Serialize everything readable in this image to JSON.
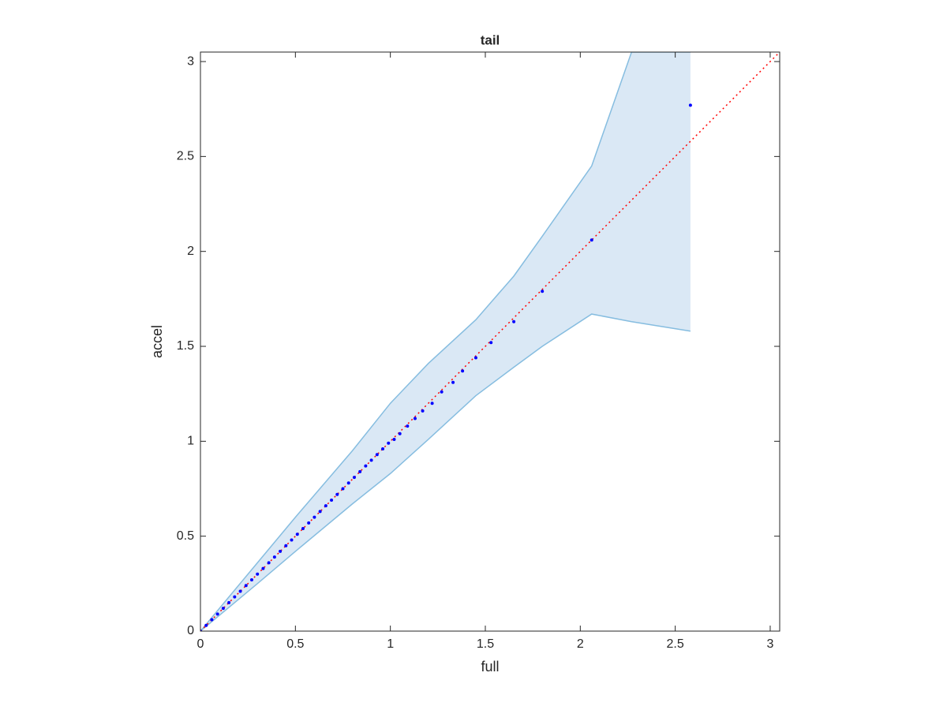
{
  "chart_data": {
    "type": "scatter",
    "title": "tail",
    "x_label": "full",
    "y_label": "accel",
    "xlim": [
      0,
      3.05
    ],
    "ylim": [
      0,
      3.05
    ],
    "xticks": [
      0,
      0.5,
      1,
      1.5,
      2,
      2.5,
      3
    ],
    "yticks": [
      0,
      0.5,
      1,
      1.5,
      2,
      2.5,
      3
    ],
    "grid": false,
    "band": {
      "fill": "#dae8f5",
      "stroke": "#86bde0",
      "x": [
        0,
        0.3,
        0.5,
        0.8,
        1,
        1.2,
        1.45,
        1.65,
        1.8,
        2.06,
        2.27,
        2.58
      ],
      "upper": [
        0,
        0.36,
        0.6,
        0.95,
        1.2,
        1.41,
        1.64,
        1.87,
        2.08,
        2.45,
        3.05,
        3.05
      ],
      "lower": [
        0,
        0.25,
        0.42,
        0.67,
        0.83,
        1.01,
        1.24,
        1.39,
        1.5,
        1.67,
        1.63,
        1.58
      ]
    },
    "reference_line": {
      "color": "#ff0000",
      "x": [
        0,
        3.05
      ],
      "y": [
        0,
        3.05
      ]
    },
    "series": [
      {
        "color": "#0000ff",
        "x": [
          0,
          0.03,
          0.06,
          0.09,
          0.12,
          0.15,
          0.18,
          0.21,
          0.24,
          0.27,
          0.3,
          0.33,
          0.36,
          0.39,
          0.42,
          0.45,
          0.48,
          0.51,
          0.54,
          0.57,
          0.6,
          0.63,
          0.66,
          0.69,
          0.72,
          0.75,
          0.78,
          0.81,
          0.84,
          0.87,
          0.9,
          0.93,
          0.96,
          0.99,
          1.02,
          1.05,
          1.09,
          1.13,
          1.17,
          1.22,
          1.27,
          1.33,
          1.38,
          1.45,
          1.53,
          1.65,
          1.8,
          2.06,
          2.58
        ],
        "values": [
          0,
          0.03,
          0.06,
          0.09,
          0.12,
          0.15,
          0.18,
          0.21,
          0.24,
          0.27,
          0.3,
          0.33,
          0.36,
          0.39,
          0.42,
          0.45,
          0.48,
          0.51,
          0.54,
          0.57,
          0.6,
          0.63,
          0.66,
          0.69,
          0.72,
          0.75,
          0.78,
          0.81,
          0.84,
          0.87,
          0.9,
          0.93,
          0.96,
          0.99,
          1.01,
          1.04,
          1.08,
          1.12,
          1.16,
          1.2,
          1.26,
          1.31,
          1.37,
          1.44,
          1.52,
          1.63,
          1.79,
          2.06,
          2.77
        ]
      }
    ]
  }
}
